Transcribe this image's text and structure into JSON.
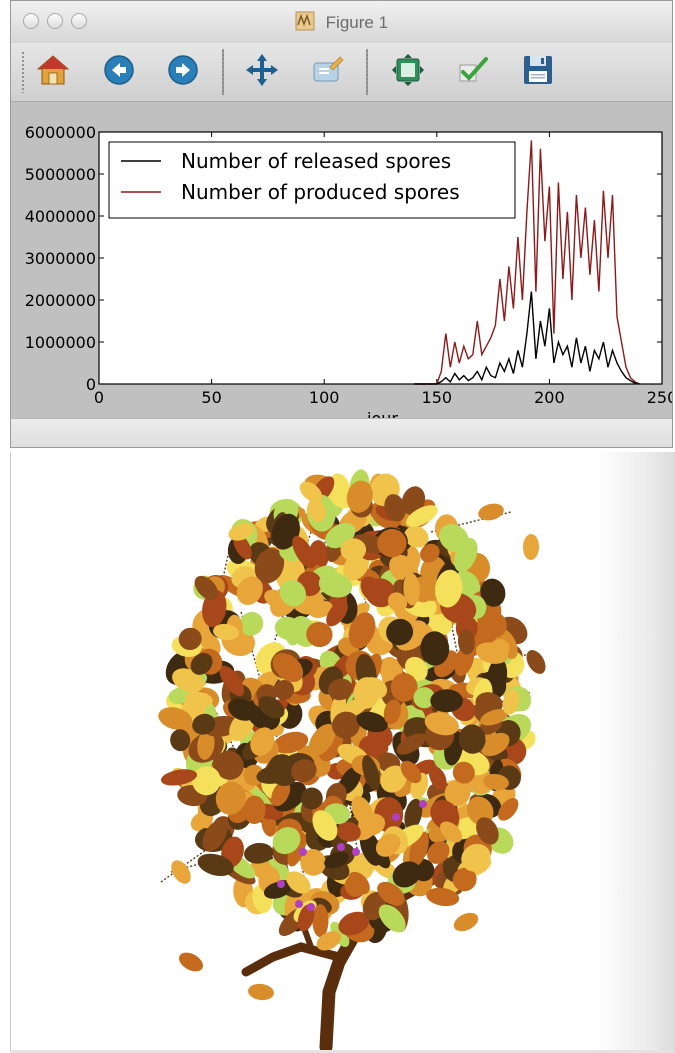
{
  "window": {
    "title": "Figure 1"
  },
  "toolbar": {
    "buttons": [
      {
        "name": "home-button",
        "icon": "home-icon"
      },
      {
        "name": "back-button",
        "icon": "back-arrow-icon"
      },
      {
        "name": "forward-button",
        "icon": "forward-arrow-icon"
      },
      {
        "name": "pan-button",
        "icon": "move-icon"
      },
      {
        "name": "zoom-button",
        "icon": "zoom-rect-icon"
      },
      {
        "name": "subplots-button",
        "icon": "subplots-icon"
      },
      {
        "name": "edit-button",
        "icon": "checkmark-icon"
      },
      {
        "name": "save-button",
        "icon": "floppy-disk-icon"
      }
    ]
  },
  "chart_data": {
    "type": "line",
    "xlabel": "jour",
    "xlim": [
      0,
      250
    ],
    "ylim": [
      0,
      6000000
    ],
    "xticks": [
      "0",
      "50",
      "100",
      "150",
      "200",
      "250"
    ],
    "yticks": [
      "0",
      "1000000",
      "2000000",
      "3000000",
      "4000000",
      "5000000",
      "6000000"
    ],
    "legend_position": "upper-left",
    "x": [
      140,
      142,
      144,
      146,
      148,
      150,
      152,
      154,
      156,
      158,
      160,
      162,
      164,
      166,
      168,
      170,
      172,
      174,
      176,
      178,
      180,
      182,
      184,
      186,
      188,
      190,
      192,
      194,
      196,
      198,
      200,
      202,
      204,
      206,
      208,
      210,
      212,
      214,
      216,
      218,
      220,
      222,
      224,
      226,
      228,
      230,
      232,
      234,
      236,
      238,
      240
    ],
    "series": [
      {
        "name": "Number of released spores",
        "color": "#000000",
        "values": [
          0,
          0,
          0,
          0,
          0,
          0,
          60000,
          150000,
          50000,
          250000,
          100000,
          200000,
          80000,
          150000,
          300000,
          100000,
          400000,
          200000,
          150000,
          500000,
          300000,
          600000,
          250000,
          800000,
          400000,
          1200000,
          2200000,
          600000,
          1500000,
          900000,
          1800000,
          500000,
          1000000,
          700000,
          900000,
          400000,
          1100000,
          500000,
          900000,
          300000,
          800000,
          600000,
          1000000,
          400000,
          800000,
          500000,
          300000,
          150000,
          80000,
          20000,
          0
        ]
      },
      {
        "name": "Number of produced spores",
        "color": "#8b1a1a",
        "values": [
          0,
          0,
          0,
          0,
          0,
          0,
          300000,
          1200000,
          400000,
          1000000,
          500000,
          900000,
          600000,
          700000,
          1500000,
          700000,
          900000,
          1100000,
          1400000,
          2500000,
          1500000,
          2800000,
          1800000,
          3500000,
          2000000,
          4100000,
          5800000,
          2200000,
          5600000,
          3400000,
          4700000,
          1200000,
          4800000,
          2500000,
          4100000,
          2000000,
          4500000,
          3000000,
          4200000,
          2600000,
          3900000,
          2200000,
          4600000,
          3000000,
          4500000,
          1600000,
          1000000,
          400000,
          150000,
          50000,
          0
        ]
      }
    ]
  },
  "scene": {
    "leaf_colors": [
      "#e8a53a",
      "#c46a1e",
      "#8a4a1a",
      "#f0c34a",
      "#d98c2a",
      "#5a3a14",
      "#b8d95a",
      "#f4e05a",
      "#a8481a",
      "#3e2a10"
    ],
    "trunk_color": "#5a2e0c",
    "fruit_color": "#b040c0"
  }
}
